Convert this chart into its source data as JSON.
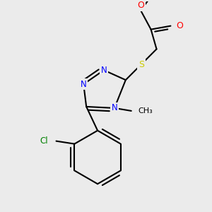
{
  "background_color": "#ebebeb",
  "atom_colors": {
    "C": "#000000",
    "N": "#0000ff",
    "O": "#ff0000",
    "S": "#cccc00",
    "Cl": "#008000"
  },
  "lw": 1.5
}
